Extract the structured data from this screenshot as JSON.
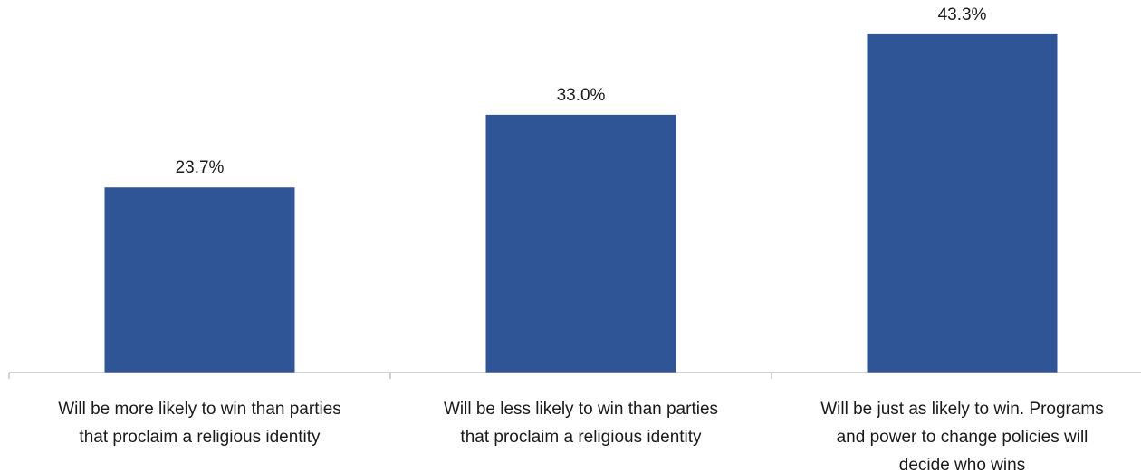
{
  "chart_data": {
    "type": "bar",
    "categories": [
      [
        "Will be more likely to win than parties",
        "that proclaim a religious identity"
      ],
      [
        "Will be less likely to win than parties",
        "that proclaim a religious identity"
      ],
      [
        "Will be just as likely to win. Programs",
        "and power to change policies will",
        "decide who wins"
      ]
    ],
    "values": [
      23.7,
      33.0,
      43.3
    ],
    "data_labels": [
      "23.7%",
      "33.0%",
      "43.3%"
    ],
    "ylim": [
      0,
      50
    ],
    "grid": false,
    "legend": "none",
    "title": "",
    "xlabel": "",
    "ylabel": "",
    "colors": {
      "bar": "#2F5597",
      "axis": "#A6A6A6",
      "text": "#1a1a1a"
    }
  }
}
